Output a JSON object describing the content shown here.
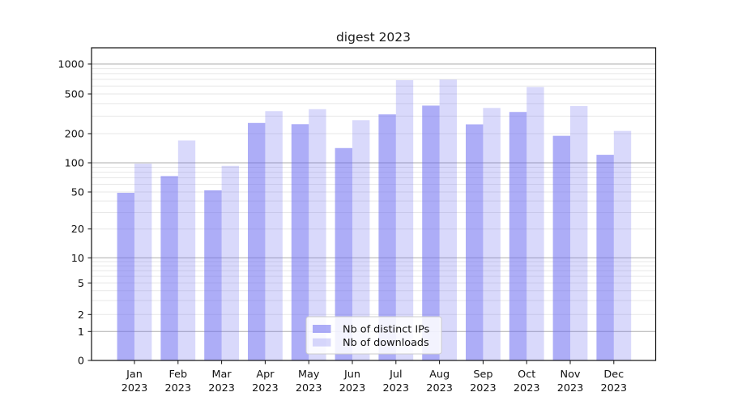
{
  "title": "digest 2023",
  "chart_data": {
    "type": "bar",
    "title": "digest 2023",
    "categories": [
      "Jan",
      "Feb",
      "Mar",
      "Apr",
      "May",
      "Jun",
      "Jul",
      "Aug",
      "Sep",
      "Oct",
      "Nov",
      "Dec"
    ],
    "category_year": "2023",
    "series": [
      {
        "name": "Nb of distinct IPs",
        "color": "rgba(105,105,240,0.55)",
        "values": [
          49,
          73,
          52,
          256,
          249,
          142,
          312,
          382,
          248,
          330,
          190,
          121
        ]
      },
      {
        "name": "Nb of downloads",
        "color": "rgba(105,105,240,0.25)",
        "values": [
          98,
          170,
          93,
          336,
          352,
          273,
          688,
          697,
          362,
          588,
          378,
          213
        ]
      }
    ],
    "yscale": "symlog",
    "yticks": [
      0,
      1,
      2,
      5,
      10,
      20,
      50,
      100,
      200,
      500,
      1000
    ],
    "major_gridlines": [
      1,
      10,
      100,
      1000
    ],
    "minor_gridlines": [
      2,
      3,
      4,
      5,
      6,
      7,
      8,
      9,
      20,
      30,
      40,
      50,
      60,
      70,
      80,
      90,
      200,
      300,
      400,
      500,
      600,
      700,
      800,
      900
    ],
    "ylim": [
      0,
      1450
    ],
    "grid": true,
    "legend": {
      "position": "lower-center",
      "entries": [
        "Nb of distinct IPs",
        "Nb of downloads"
      ]
    },
    "colors": {
      "bar_distinct_ips": "#a9a9f3",
      "bar_downloads": "#dcdcf8",
      "major_grid": "#adadad",
      "minor_grid": "#e7e7e7",
      "axis": "#111111",
      "legend_border": "#cccccc"
    }
  }
}
